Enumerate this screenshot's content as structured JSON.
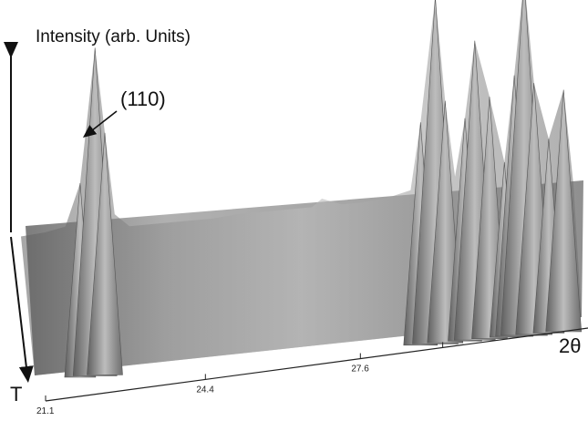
{
  "chart_data": {
    "type": "area",
    "title": "",
    "zlabel": "Intensity (arb. Units)",
    "xlabel": "2θ",
    "ylabel": "T",
    "annotation": "(110)",
    "x_ticks": [
      "21.1",
      "24.4",
      "27.6"
    ],
    "surface_color": "#9a9a9a",
    "grid": false,
    "series": [
      {
        "x": [
          21.1,
          21.6,
          22.0,
          22.3,
          22.6,
          22.8,
          23.0,
          23.3,
          23.6,
          24.0,
          24.5,
          25.0,
          25.5,
          26.0,
          26.5,
          27.0,
          27.2,
          27.4,
          27.6,
          28.0,
          28.5,
          29.0,
          29.2,
          29.5,
          29.7,
          29.9,
          30.1,
          30.3,
          30.6,
          30.9,
          31.1,
          31.3,
          31.5,
          31.8,
          32.1,
          32.3
        ],
        "values": [
          0.05,
          0.06,
          0.08,
          0.3,
          1.0,
          0.55,
          0.12,
          0.05,
          0.05,
          0.05,
          0.05,
          0.05,
          0.06,
          0.06,
          0.06,
          0.06,
          0.1,
          0.08,
          0.06,
          0.06,
          0.07,
          0.1,
          0.45,
          1.1,
          0.55,
          0.15,
          0.45,
          0.85,
          0.55,
          0.2,
          0.65,
          1.15,
          0.6,
          0.3,
          0.55,
          0.05
        ]
      }
    ]
  }
}
